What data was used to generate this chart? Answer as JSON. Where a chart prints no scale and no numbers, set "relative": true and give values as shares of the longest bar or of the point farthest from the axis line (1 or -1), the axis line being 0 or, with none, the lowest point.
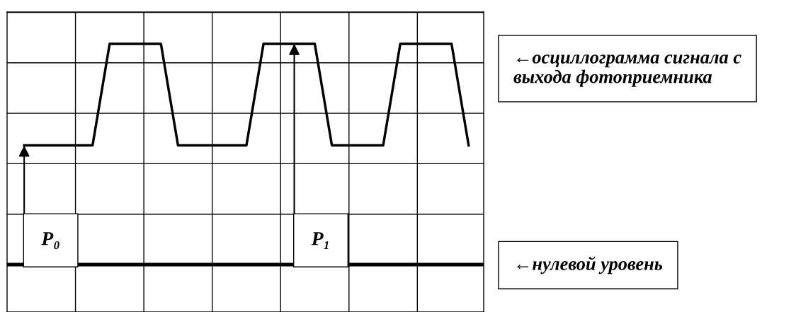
{
  "chart_data": {
    "type": "line",
    "relative": true,
    "color": "#000000",
    "categories": [
      null,
      null,
      null,
      null,
      null,
      null,
      null,
      null,
      null,
      null,
      null,
      null,
      null,
      null,
      null,
      null,
      null,
      null,
      null,
      null,
      null,
      null,
      null,
      null,
      null,
      null,
      null,
      null
    ],
    "values": [
      null,
      0.54,
      0.54,
      0.54,
      0.54,
      0.54,
      1,
      1,
      1,
      1,
      0.54,
      0.54,
      0.54,
      0.54,
      0.54,
      1,
      1,
      1,
      1,
      0.54,
      0.54,
      0.54,
      0.54,
      1,
      1,
      1,
      1,
      0.54
    ],
    "grid": true,
    "marker": "none",
    "line_style": "solid",
    "annotations": [
      "P₀",
      "P₁",
      "←осциллограмма сигнала с выхода фотоприемника",
      "←нулевой уровень"
    ]
  }
}
